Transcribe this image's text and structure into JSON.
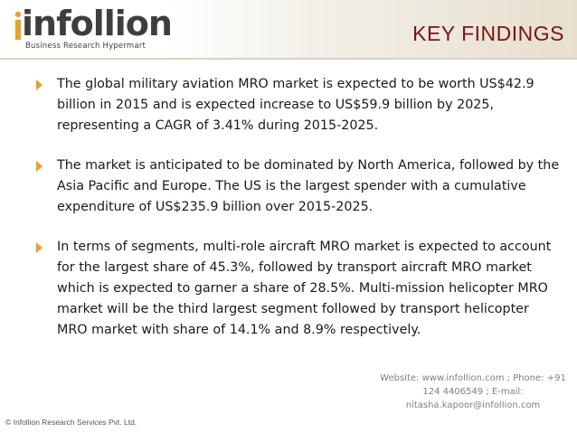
{
  "header": {
    "logo_text": "infollion",
    "logo_tagline": "Business Research Hypermart",
    "title": "KEY FINDINGS"
  },
  "bullets": [
    "The global military aviation MRO market is expected to be worth US$42.9 billion in 2015 and is expected increase to US$59.9 billion by 2025, representing a CAGR of 3.41% during 2015-2025.",
    "The market is anticipated to be dominated by North America, followed by the Asia Pacific and Europe. The US is the largest spender with a cumulative expenditure of US$235.9 billion over 2015-2025.",
    "In terms of segments, multi-role aircraft MRO market is expected to account for the largest share of 45.3%, followed by transport aircraft MRO market which is expected to garner a share of 28.5%. Multi-mission helicopter MRO market will be the third largest segment followed by transport helicopter MRO market with share of 14.1% and 8.9% respectively."
  ],
  "footer": {
    "contact": "Website: www.infollion.com ; Phone: +91 124 4406549 ; E-mail: nitasha.kapoor@infollion.com",
    "copyright": "© Infollion Research Services Pvt. Ltd."
  },
  "colors": {
    "title": "#7a1515",
    "bullet_marker": "#f0a020",
    "logo_accent": "#f0a020"
  }
}
